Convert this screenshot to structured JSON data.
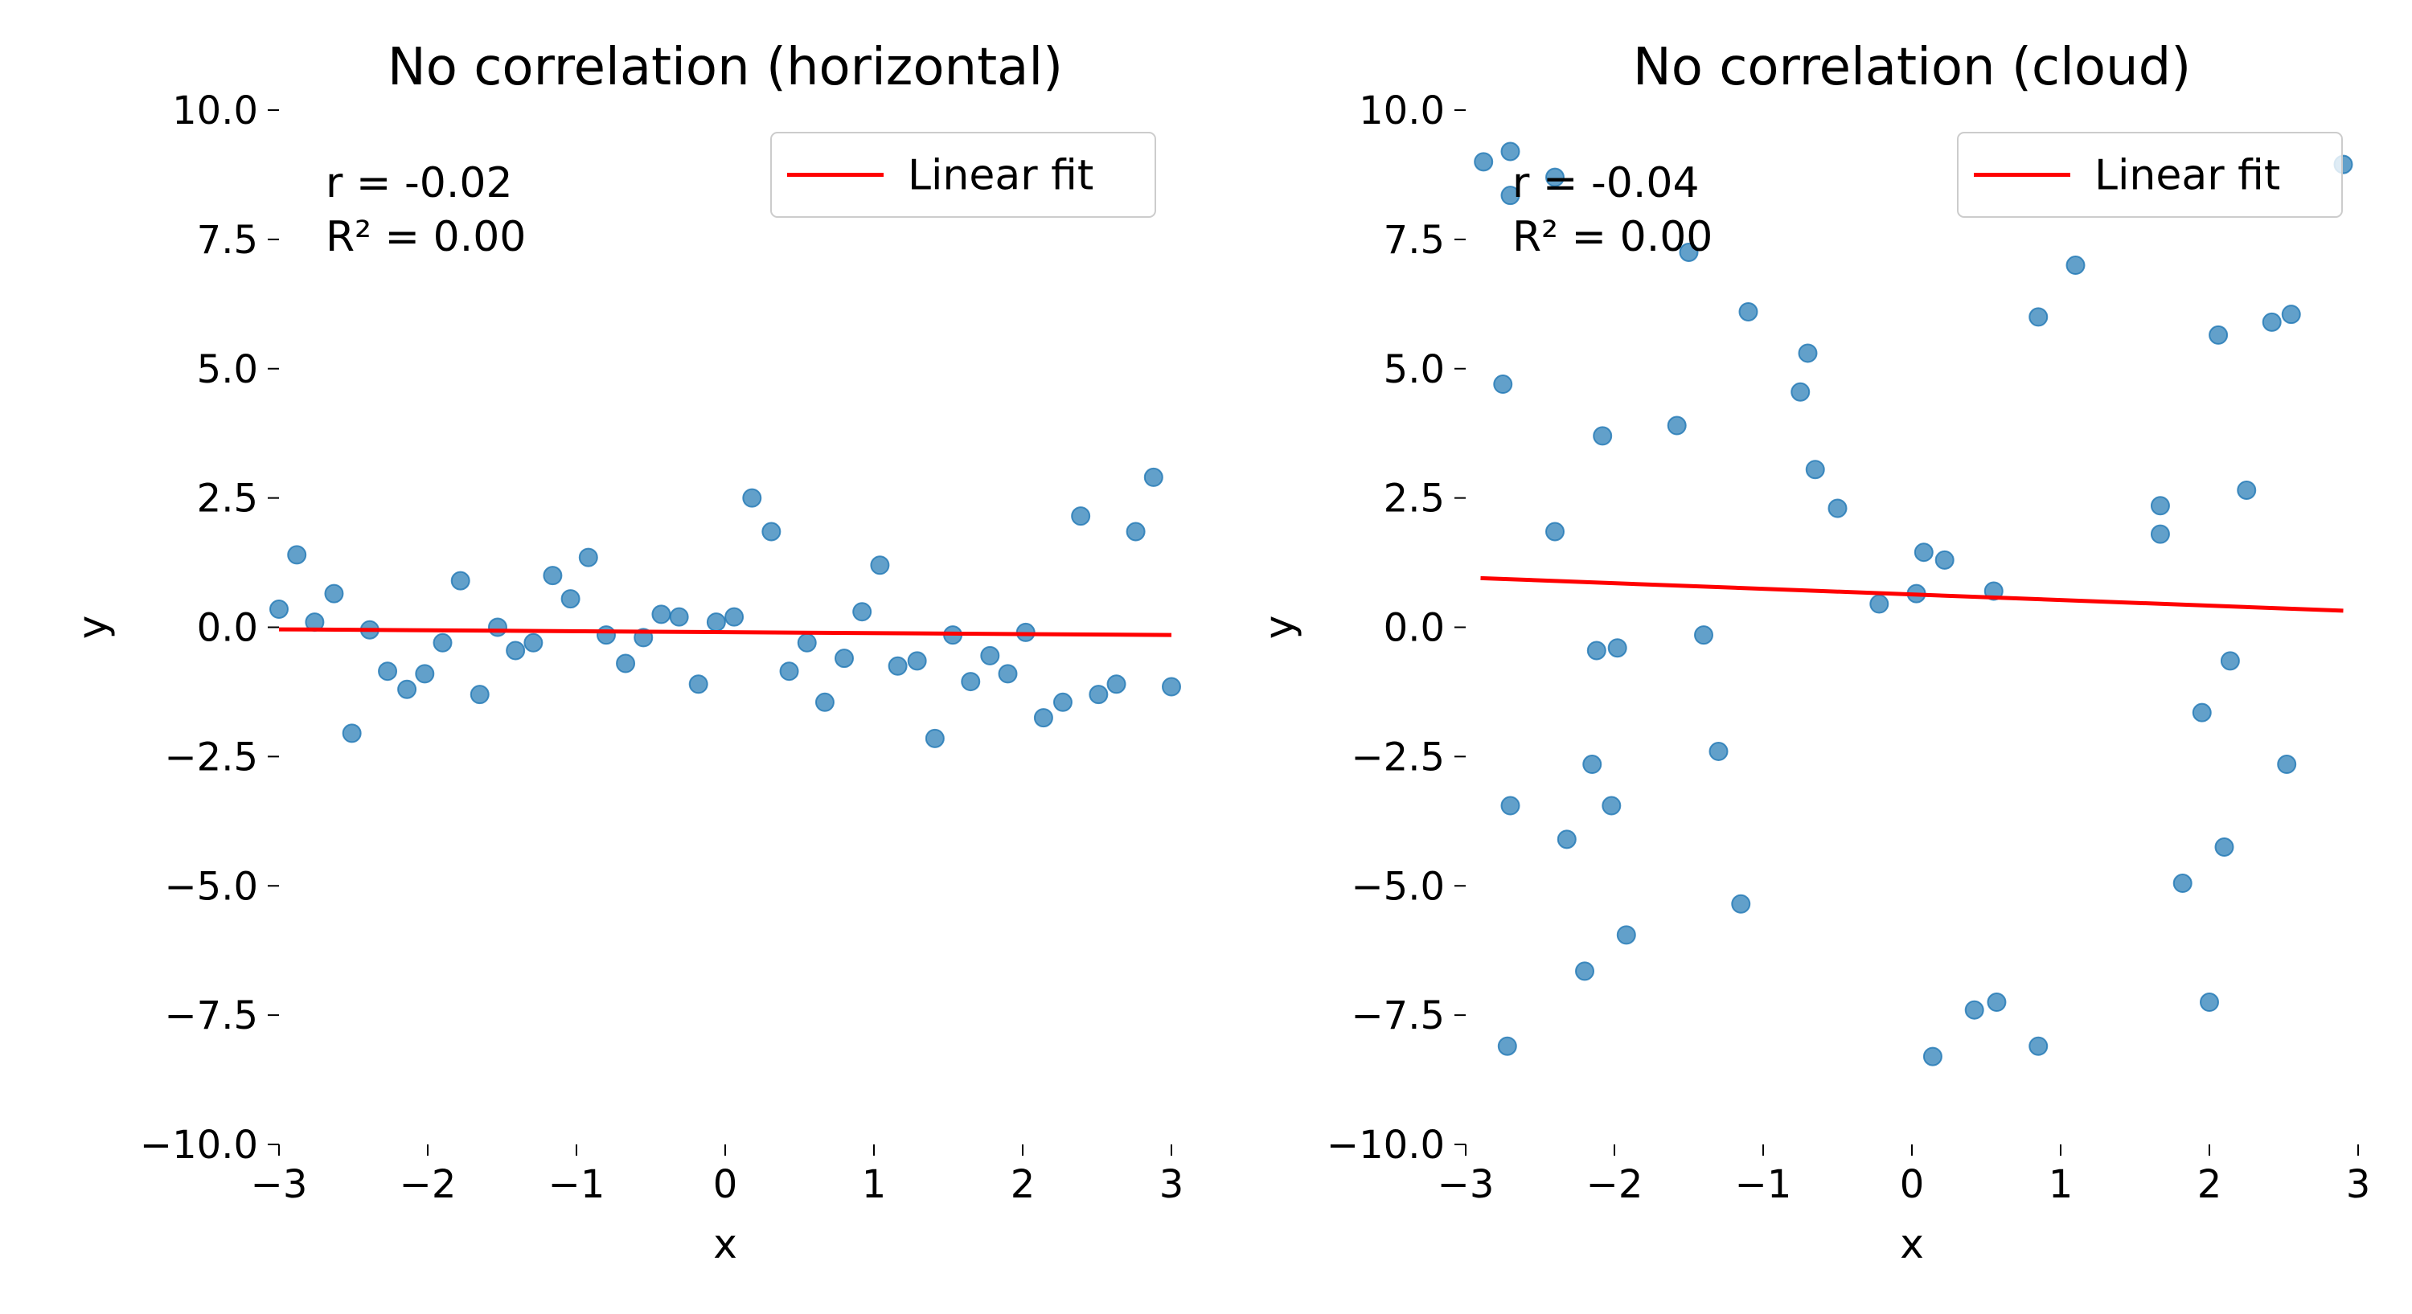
{
  "chart_data": [
    {
      "type": "scatter",
      "title": "No correlation (horizontal)",
      "xlabel": "x",
      "ylabel": "y",
      "xlim": [
        -3,
        3
      ],
      "ylim": [
        -10,
        10
      ],
      "xticks": [
        -3,
        -2,
        -1,
        0,
        1,
        2,
        3
      ],
      "xtick_labels": [
        "−3",
        "−2",
        "−1",
        "0",
        "1",
        "2",
        "3"
      ],
      "yticks": [
        10,
        7.5,
        5,
        2.5,
        0,
        -2.5,
        -5,
        -7.5,
        -10
      ],
      "ytick_labels": [
        "10.0",
        "7.5",
        "5.0",
        "2.5",
        "0.0",
        "−2.5",
        "−5.0",
        "−7.5",
        "−10.0"
      ],
      "stats": [
        "r = -0.02",
        "R² = 0.00"
      ],
      "legend": {
        "label": "Linear fit",
        "position": "top-right"
      },
      "grid": false,
      "point_color": "#1f77b4",
      "fit_color": "#ff0000",
      "fit": {
        "x": [
          -3,
          3
        ],
        "y": [
          -0.04,
          -0.15
        ]
      },
      "points": [
        {
          "x": -3.0,
          "y": 0.35
        },
        {
          "x": -2.88,
          "y": 1.4
        },
        {
          "x": -2.76,
          "y": 0.1
        },
        {
          "x": -2.63,
          "y": 0.65
        },
        {
          "x": -2.51,
          "y": -2.05
        },
        {
          "x": -2.39,
          "y": -0.05
        },
        {
          "x": -2.27,
          "y": -0.85
        },
        {
          "x": -2.14,
          "y": -1.2
        },
        {
          "x": -2.02,
          "y": -0.9
        },
        {
          "x": -1.9,
          "y": -0.3
        },
        {
          "x": -1.78,
          "y": 0.9
        },
        {
          "x": -1.65,
          "y": -1.3
        },
        {
          "x": -1.53,
          "y": 0.0
        },
        {
          "x": -1.41,
          "y": -0.45
        },
        {
          "x": -1.29,
          "y": -0.3
        },
        {
          "x": -1.16,
          "y": 1.0
        },
        {
          "x": -1.04,
          "y": 0.55
        },
        {
          "x": -0.92,
          "y": 1.35
        },
        {
          "x": -0.8,
          "y": -0.15
        },
        {
          "x": -0.67,
          "y": -0.7
        },
        {
          "x": -0.55,
          "y": -0.2
        },
        {
          "x": -0.43,
          "y": 0.25
        },
        {
          "x": -0.31,
          "y": 0.2
        },
        {
          "x": -0.18,
          "y": -1.1
        },
        {
          "x": -0.06,
          "y": 0.1
        },
        {
          "x": 0.06,
          "y": 0.2
        },
        {
          "x": 0.18,
          "y": 2.5
        },
        {
          "x": 0.31,
          "y": 1.85
        },
        {
          "x": 0.43,
          "y": -0.85
        },
        {
          "x": 0.55,
          "y": -0.3
        },
        {
          "x": 0.67,
          "y": -1.45
        },
        {
          "x": 0.8,
          "y": -0.6
        },
        {
          "x": 0.92,
          "y": 0.3
        },
        {
          "x": 1.04,
          "y": 1.2
        },
        {
          "x": 1.16,
          "y": -0.75
        },
        {
          "x": 1.29,
          "y": -0.65
        },
        {
          "x": 1.41,
          "y": -2.15
        },
        {
          "x": 1.53,
          "y": -0.15
        },
        {
          "x": 1.65,
          "y": -1.05
        },
        {
          "x": 1.78,
          "y": -0.55
        },
        {
          "x": 1.9,
          "y": -0.9
        },
        {
          "x": 2.02,
          "y": -0.1
        },
        {
          "x": 2.14,
          "y": -1.75
        },
        {
          "x": 2.27,
          "y": -1.45
        },
        {
          "x": 2.39,
          "y": 2.15
        },
        {
          "x": 2.51,
          "y": -1.3
        },
        {
          "x": 2.63,
          "y": -1.1
        },
        {
          "x": 2.76,
          "y": 1.85
        },
        {
          "x": 2.88,
          "y": 2.9
        },
        {
          "x": 3.0,
          "y": -1.15
        }
      ]
    },
    {
      "type": "scatter",
      "title": "No correlation (cloud)",
      "xlabel": "x",
      "ylabel": "y",
      "xlim": [
        -3,
        3
      ],
      "ylim": [
        -10,
        10
      ],
      "xticks": [
        -3,
        -2,
        -1,
        0,
        1,
        2,
        3
      ],
      "xtick_labels": [
        "−3",
        "−2",
        "−1",
        "0",
        "1",
        "2",
        "3"
      ],
      "yticks": [
        10,
        7.5,
        5,
        2.5,
        0,
        -2.5,
        -5,
        -7.5,
        -10
      ],
      "ytick_labels": [
        "10.0",
        "7.5",
        "5.0",
        "2.5",
        "0.0",
        "−2.5",
        "−5.0",
        "−7.5",
        "−10.0"
      ],
      "stats": [
        "r = -0.04",
        "R² = 0.00"
      ],
      "legend": {
        "label": "Linear fit",
        "position": "top-right"
      },
      "grid": false,
      "point_color": "#1f77b4",
      "fit_color": "#ff0000",
      "fit": {
        "x": [
          -2.9,
          2.9
        ],
        "y": [
          0.95,
          0.32
        ]
      },
      "points": [
        {
          "x": -2.88,
          "y": 9.0
        },
        {
          "x": -2.75,
          "y": 4.7
        },
        {
          "x": -2.7,
          "y": 9.2
        },
        {
          "x": -2.7,
          "y": 8.35
        },
        {
          "x": -2.7,
          "y": -3.45
        },
        {
          "x": -2.72,
          "y": -8.1
        },
        {
          "x": -2.4,
          "y": 1.85
        },
        {
          "x": -2.4,
          "y": 8.7
        },
        {
          "x": -2.32,
          "y": -4.1
        },
        {
          "x": -2.2,
          "y": -6.65
        },
        {
          "x": -2.15,
          "y": -2.65
        },
        {
          "x": -2.12,
          "y": -0.45
        },
        {
          "x": -2.08,
          "y": 3.7
        },
        {
          "x": -2.02,
          "y": -3.45
        },
        {
          "x": -1.98,
          "y": -0.4
        },
        {
          "x": -1.92,
          "y": -5.95
        },
        {
          "x": -1.58,
          "y": 3.9
        },
        {
          "x": -1.5,
          "y": 7.25
        },
        {
          "x": -1.4,
          "y": -0.15
        },
        {
          "x": -1.3,
          "y": -2.4
        },
        {
          "x": -1.15,
          "y": -5.35
        },
        {
          "x": -1.1,
          "y": 6.1
        },
        {
          "x": -0.75,
          "y": 4.55
        },
        {
          "x": -0.7,
          "y": 5.3
        },
        {
          "x": -0.65,
          "y": 3.05
        },
        {
          "x": -0.5,
          "y": 2.3
        },
        {
          "x": -0.22,
          "y": 0.45
        },
        {
          "x": 0.03,
          "y": 0.65
        },
        {
          "x": 0.08,
          "y": 1.45
        },
        {
          "x": 0.14,
          "y": -8.3
        },
        {
          "x": 0.22,
          "y": 1.3
        },
        {
          "x": 0.42,
          "y": -7.4
        },
        {
          "x": 0.55,
          "y": 0.7
        },
        {
          "x": 0.57,
          "y": -7.25
        },
        {
          "x": 0.85,
          "y": 6.0
        },
        {
          "x": 0.85,
          "y": -8.1
        },
        {
          "x": 1.1,
          "y": 7.0
        },
        {
          "x": 1.67,
          "y": 2.35
        },
        {
          "x": 1.67,
          "y": 1.8
        },
        {
          "x": 1.82,
          "y": -4.95
        },
        {
          "x": 1.95,
          "y": -1.65
        },
        {
          "x": 2.0,
          "y": -7.25
        },
        {
          "x": 2.06,
          "y": 5.65
        },
        {
          "x": 2.1,
          "y": -4.25
        },
        {
          "x": 2.14,
          "y": -0.65
        },
        {
          "x": 2.25,
          "y": 2.65
        },
        {
          "x": 2.42,
          "y": 5.9
        },
        {
          "x": 2.52,
          "y": -2.65
        },
        {
          "x": 2.55,
          "y": 6.05
        },
        {
          "x": 2.9,
          "y": 8.95
        }
      ]
    }
  ]
}
